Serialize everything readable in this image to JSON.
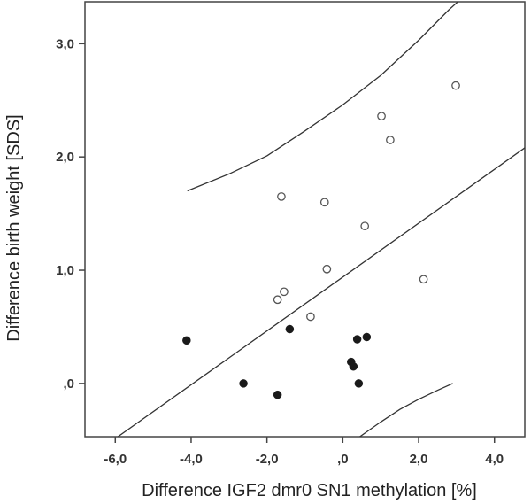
{
  "chart_data": {
    "type": "scatter",
    "title": "",
    "xlabel": "Difference IGF2 dmr0 SN1 methylation [%]",
    "ylabel": "Difference birth weight [SDS]",
    "xlim": [
      -6.8,
      4.8
    ],
    "ylim": [
      -0.47,
      3.37
    ],
    "x_ticks": [
      -6.0,
      -4.0,
      -2.0,
      0.0,
      2.0,
      4.0
    ],
    "x_tick_labels": [
      "-6,0",
      "-4,0",
      "-2,0",
      ",0",
      "2,0",
      "4,0"
    ],
    "y_ticks": [
      0.0,
      1.0,
      2.0,
      3.0
    ],
    "y_tick_labels": [
      ",0",
      "1,0",
      "2,0",
      "3,0"
    ],
    "grid": false,
    "legend": "none",
    "colors": {
      "line": "#333333",
      "open_marker_stroke": "#555555",
      "filled_marker": "#1a1a1a"
    },
    "series": [
      {
        "marker": "open-circle",
        "points": [
          [
            2.98,
            2.63
          ],
          [
            1.02,
            2.36
          ],
          [
            1.25,
            2.15
          ],
          [
            -1.62,
            1.65
          ],
          [
            -0.48,
            1.6
          ],
          [
            0.58,
            1.39
          ],
          [
            -0.42,
            1.01
          ],
          [
            2.13,
            0.92
          ],
          [
            -1.55,
            0.81
          ],
          [
            -1.72,
            0.74
          ],
          [
            -0.85,
            0.59
          ]
        ]
      },
      {
        "marker": "filled-circle",
        "points": [
          [
            -4.12,
            0.38
          ],
          [
            -1.4,
            0.48
          ],
          [
            0.63,
            0.41
          ],
          [
            0.38,
            0.39
          ],
          [
            0.22,
            0.19
          ],
          [
            0.28,
            0.15
          ],
          [
            -2.62,
            0.0
          ],
          [
            0.42,
            0.0
          ],
          [
            -1.72,
            -0.1
          ]
        ]
      }
    ],
    "fit_line": {
      "x": [
        -5.93,
        4.8
      ],
      "y": [
        -0.47,
        2.08
      ]
    },
    "confidence_band": {
      "upper": {
        "x": [
          -4.1,
          -3.0,
          -2.0,
          -1.0,
          0.0,
          1.0,
          2.0,
          2.8,
          3.2
        ],
        "y": [
          1.7,
          1.85,
          2.01,
          2.23,
          2.46,
          2.72,
          3.03,
          3.3,
          3.42
        ]
      },
      "lower": {
        "x": [
          0.45,
          1.0,
          1.5,
          2.0,
          2.5,
          2.9
        ],
        "y": [
          -0.47,
          -0.34,
          -0.23,
          -0.14,
          -0.06,
          0.0
        ]
      }
    }
  }
}
